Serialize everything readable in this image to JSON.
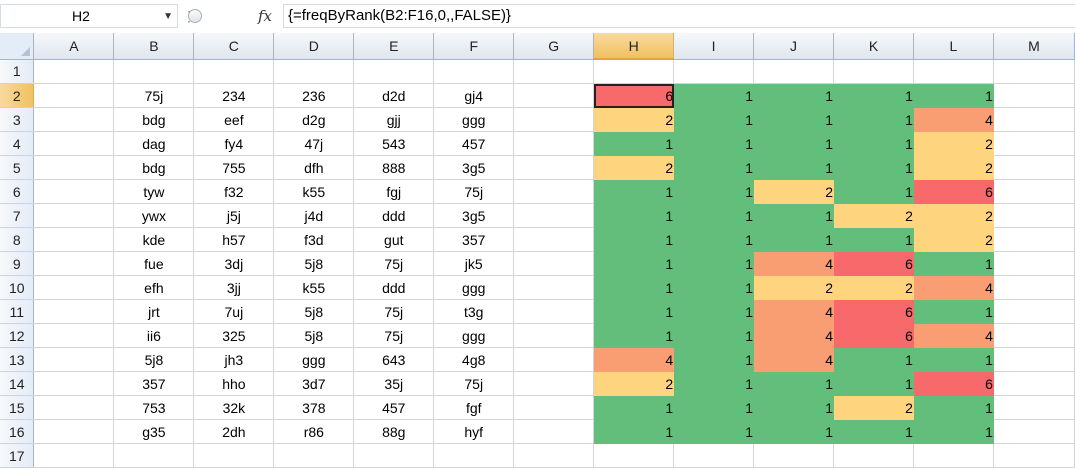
{
  "formula_bar": {
    "name_box": "H2",
    "fx_label": "fx",
    "formula": "{=freqByRank(B2:F16,0,,FALSE)}"
  },
  "columns": [
    "A",
    "B",
    "C",
    "D",
    "E",
    "F",
    "G",
    "H",
    "I",
    "J",
    "K",
    "L",
    "M"
  ],
  "selected_column": "H",
  "selected_row": 2,
  "rows": [
    {
      "n": "1",
      "cells": [
        "",
        "",
        "",
        "",
        "",
        "",
        "",
        "",
        "",
        "",
        "",
        "",
        ""
      ]
    },
    {
      "n": "2",
      "cells": [
        "",
        "75j",
        "234",
        "236",
        "d2d",
        "gj4",
        "",
        "6",
        "1",
        "1",
        "1",
        "1",
        ""
      ]
    },
    {
      "n": "3",
      "cells": [
        "",
        "bdg",
        "eef",
        "d2g",
        "gjj",
        "ggg",
        "",
        "2",
        "1",
        "1",
        "1",
        "4",
        ""
      ]
    },
    {
      "n": "4",
      "cells": [
        "",
        "dag",
        "fy4",
        "47j",
        "543",
        "457",
        "",
        "1",
        "1",
        "1",
        "1",
        "2",
        ""
      ]
    },
    {
      "n": "5",
      "cells": [
        "",
        "bdg",
        "755",
        "dfh",
        "888",
        "3g5",
        "",
        "2",
        "1",
        "1",
        "1",
        "2",
        ""
      ]
    },
    {
      "n": "6",
      "cells": [
        "",
        "tyw",
        "f32",
        "k55",
        "fgj",
        "75j",
        "",
        "1",
        "1",
        "2",
        "1",
        "6",
        ""
      ]
    },
    {
      "n": "7",
      "cells": [
        "",
        "ywx",
        "j5j",
        "j4d",
        "ddd",
        "3g5",
        "",
        "1",
        "1",
        "1",
        "2",
        "2",
        ""
      ]
    },
    {
      "n": "8",
      "cells": [
        "",
        "kde",
        "h57",
        "f3d",
        "gut",
        "357",
        "",
        "1",
        "1",
        "1",
        "1",
        "2",
        ""
      ]
    },
    {
      "n": "9",
      "cells": [
        "",
        "fue",
        "3dj",
        "5j8",
        "75j",
        "jk5",
        "",
        "1",
        "1",
        "4",
        "6",
        "1",
        ""
      ]
    },
    {
      "n": "10",
      "cells": [
        "",
        "efh",
        "3jj",
        "k55",
        "ddd",
        "ggg",
        "",
        "1",
        "1",
        "2",
        "2",
        "4",
        ""
      ]
    },
    {
      "n": "11",
      "cells": [
        "",
        "jrt",
        "7uj",
        "5j8",
        "75j",
        "t3g",
        "",
        "1",
        "1",
        "4",
        "6",
        "1",
        ""
      ]
    },
    {
      "n": "12",
      "cells": [
        "",
        "ii6",
        "325",
        "5j8",
        "75j",
        "ggg",
        "",
        "1",
        "1",
        "4",
        "6",
        "4",
        ""
      ]
    },
    {
      "n": "13",
      "cells": [
        "",
        "5j8",
        "jh3",
        "ggg",
        "643",
        "4g8",
        "",
        "4",
        "1",
        "4",
        "1",
        "1",
        ""
      ]
    },
    {
      "n": "14",
      "cells": [
        "",
        "357",
        "hho",
        "3d7",
        "35j",
        "75j",
        "",
        "2",
        "1",
        "1",
        "1",
        "6",
        ""
      ]
    },
    {
      "n": "15",
      "cells": [
        "",
        "753",
        "32k",
        "378",
        "457",
        "fgf",
        "",
        "1",
        "1",
        "1",
        "2",
        "1",
        ""
      ]
    },
    {
      "n": "16",
      "cells": [
        "",
        "g35",
        "2dh",
        "r86",
        "88g",
        "hyf",
        "",
        "1",
        "1",
        "1",
        "1",
        "1",
        ""
      ]
    },
    {
      "n": "17",
      "cells": [
        "",
        "",
        "",
        "",
        "",
        "",
        "",
        "",
        "",
        "",
        "",
        "",
        ""
      ]
    }
  ],
  "heat_colors": {
    "1": "#63be7b",
    "2": "#fed47e",
    "4": "#f99e72",
    "6": "#f8696b"
  }
}
